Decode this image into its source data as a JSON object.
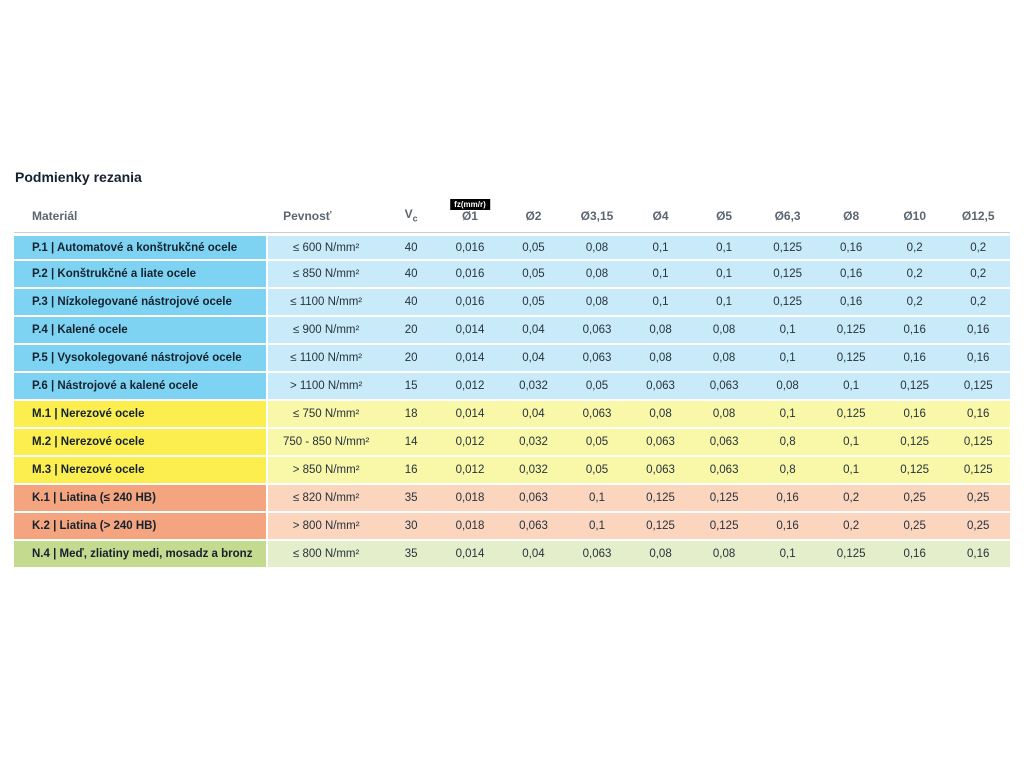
{
  "page": {
    "title": "Podmienky rezania"
  },
  "table": {
    "headers": {
      "material": "Materiál",
      "strength": "Pevnosť",
      "vc": "V",
      "vc_sub": "c",
      "fz_badge": "fz(mm/r)",
      "diameters": [
        "Ø1",
        "Ø2",
        "Ø3,15",
        "Ø4",
        "Ø5",
        "Ø6,3",
        "Ø8",
        "Ø10",
        "Ø12,5"
      ]
    },
    "rows": [
      {
        "group": "blue",
        "material": "P.1 | Automatové a konštrukčné ocele",
        "strength": "≤ 600 N/mm²",
        "vc": "40",
        "values": [
          "0,016",
          "0,05",
          "0,08",
          "0,1",
          "0,1",
          "0,125",
          "0,16",
          "0,2",
          "0,2"
        ]
      },
      {
        "group": "blue",
        "material": "P.2 | Konštrukčné a liate ocele",
        "strength": "≤ 850 N/mm²",
        "vc": "40",
        "values": [
          "0,016",
          "0,05",
          "0,08",
          "0,1",
          "0,1",
          "0,125",
          "0,16",
          "0,2",
          "0,2"
        ]
      },
      {
        "group": "blue",
        "material": "P.3 | Nízkolegované nástrojové ocele",
        "strength": "≤ 1100 N/mm²",
        "vc": "40",
        "values": [
          "0,016",
          "0,05",
          "0,08",
          "0,1",
          "0,1",
          "0,125",
          "0,16",
          "0,2",
          "0,2"
        ]
      },
      {
        "group": "blue",
        "material": "P.4 | Kalené ocele",
        "strength": "≤ 900 N/mm²",
        "vc": "20",
        "values": [
          "0,014",
          "0,04",
          "0,063",
          "0,08",
          "0,08",
          "0,1",
          "0,125",
          "0,16",
          "0,16"
        ]
      },
      {
        "group": "blue",
        "material": "P.5 | Vysokolegované nástrojové ocele",
        "strength": "≤ 1100 N/mm²",
        "vc": "20",
        "values": [
          "0,014",
          "0,04",
          "0,063",
          "0,08",
          "0,08",
          "0,1",
          "0,125",
          "0,16",
          "0,16"
        ]
      },
      {
        "group": "blue",
        "material": "P.6 | Nástrojové a kalené ocele",
        "strength": "> 1100 N/mm²",
        "vc": "15",
        "values": [
          "0,012",
          "0,032",
          "0,05",
          "0,063",
          "0,063",
          "0,08",
          "0,1",
          "0,125",
          "0,125"
        ]
      },
      {
        "group": "yellow",
        "material": "M.1 | Nerezové ocele",
        "strength": "≤ 750 N/mm²",
        "vc": "18",
        "values": [
          "0,014",
          "0,04",
          "0,063",
          "0,08",
          "0,08",
          "0,1",
          "0,125",
          "0,16",
          "0,16"
        ]
      },
      {
        "group": "yellow",
        "material": "M.2 | Nerezové ocele",
        "strength": "750 - 850 N/mm²",
        "vc": "14",
        "values": [
          "0,012",
          "0,032",
          "0,05",
          "0,063",
          "0,063",
          "0,8",
          "0,1",
          "0,125",
          "0,125"
        ]
      },
      {
        "group": "yellow",
        "material": "M.3 | Nerezové ocele",
        "strength": "> 850 N/mm²",
        "vc": "16",
        "values": [
          "0,012",
          "0,032",
          "0,05",
          "0,063",
          "0,063",
          "0,8",
          "0,1",
          "0,125",
          "0,125"
        ]
      },
      {
        "group": "orange",
        "material": "K.1 | Liatina (≤ 240 HB)",
        "strength": "≤ 820 N/mm²",
        "vc": "35",
        "values": [
          "0,018",
          "0,063",
          "0,1",
          "0,125",
          "0,125",
          "0,16",
          "0,2",
          "0,25",
          "0,25"
        ]
      },
      {
        "group": "orange",
        "material": "K.2 | Liatina (> 240 HB)",
        "strength": "> 800 N/mm²",
        "vc": "30",
        "values": [
          "0,018",
          "0,063",
          "0,1",
          "0,125",
          "0,125",
          "0,16",
          "0,2",
          "0,25",
          "0,25"
        ]
      },
      {
        "group": "green",
        "material": "N.4 | Meď, zliatiny medi, mosadz a bronz",
        "strength": "≤ 800 N/mm²",
        "vc": "35",
        "values": [
          "0,014",
          "0,04",
          "0,063",
          "0,08",
          "0,08",
          "0,1",
          "0,125",
          "0,16",
          "0,16"
        ]
      }
    ]
  },
  "colors": {
    "blue_label": "#7ed3f3",
    "blue_row": "#c9ebf9",
    "yellow_label": "#fcee4f",
    "yellow_row": "#f9f7a8",
    "orange_label": "#f4a47e",
    "orange_row": "#fbd5bd",
    "green_label": "#c4da8e",
    "green_row": "#e4eeca",
    "badge_bg": "#000000",
    "badge_text": "#ffffff",
    "header_text": "#5b6670",
    "material_text": "#14222e",
    "value_text": "#26323e",
    "header_border": "#c9cdd2",
    "page_bg": "#ffffff"
  }
}
